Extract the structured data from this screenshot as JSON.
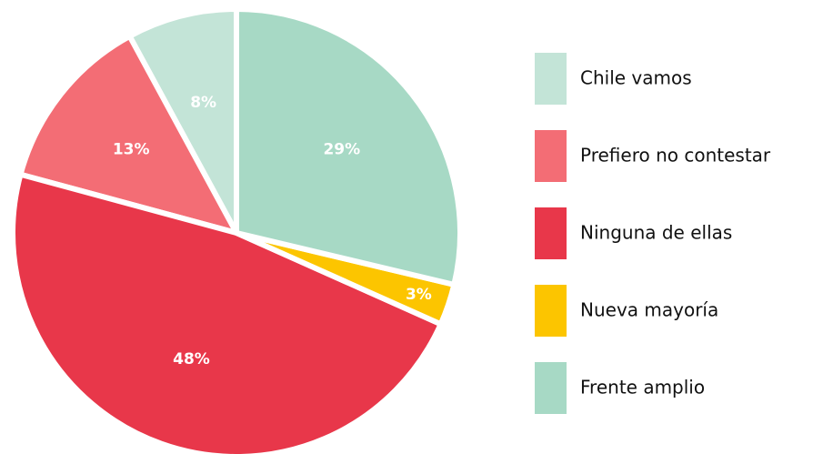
{
  "chart_data": {
    "type": "pie",
    "categories": [
      "Chile vamos",
      "Prefiero no contestar",
      "Ninguna de ellas",
      "Nueva mayoría",
      "Frente amplio"
    ],
    "values": [
      8,
      13,
      48,
      3,
      29
    ],
    "value_labels": [
      "8%",
      "13%",
      "48%",
      "3%",
      "29%"
    ],
    "colors": [
      "#c3e4d7",
      "#f36d75",
      "#e8374a",
      "#fcc500",
      "#a7d9c5"
    ],
    "legend": "right"
  }
}
